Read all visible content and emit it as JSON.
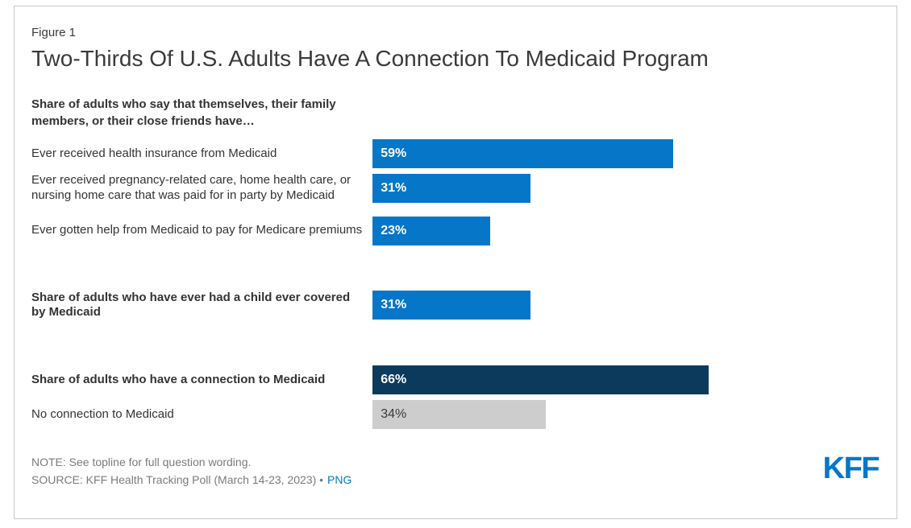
{
  "header": {
    "figure_label": "Figure 1",
    "title": "Two-Thirds Of U.S. Adults Have A Connection To Medicaid Program"
  },
  "chart_data": {
    "type": "bar",
    "orientation": "horizontal",
    "title": "Two-Thirds Of U.S. Adults Have A Connection To Medicaid Program",
    "unit": "%",
    "xlim": [
      0,
      100
    ],
    "section_headings": [
      "Share of adults who say that themselves, their family members, or their close friends have…"
    ],
    "rows": [
      {
        "label": "Ever received health insurance from Medicaid",
        "value": 59,
        "display": "59%",
        "style": "blue"
      },
      {
        "label": "Ever received pregnancy-related care, home health care, or nursing home care that was paid for in party by Medicaid",
        "value": 31,
        "display": "31%",
        "style": "blue"
      },
      {
        "label": "Ever gotten help from Medicaid to pay for Medicare premiums",
        "value": 23,
        "display": "23%",
        "style": "blue"
      },
      {
        "label": "Share of adults who have ever had a child ever covered by Medicaid",
        "value": 31,
        "display": "31%",
        "style": "blue"
      },
      {
        "label": "Share of adults who have a connection to Medicaid",
        "value": 66,
        "display": "66%",
        "style": "navy"
      },
      {
        "label": "No connection to Medicaid",
        "value": 34,
        "display": "34%",
        "style": "gray"
      }
    ],
    "colors": {
      "bar_blue": "#0677c8",
      "bar_navy": "#0b3a5d",
      "bar_gray": "#cdcdcd"
    }
  },
  "footer": {
    "note": "NOTE: See topline for full question wording.",
    "source_prefix": "SOURCE: KFF Health Tracking Poll (March 14-23, 2023) •",
    "source_link": "PNG",
    "logo": "KFF"
  }
}
